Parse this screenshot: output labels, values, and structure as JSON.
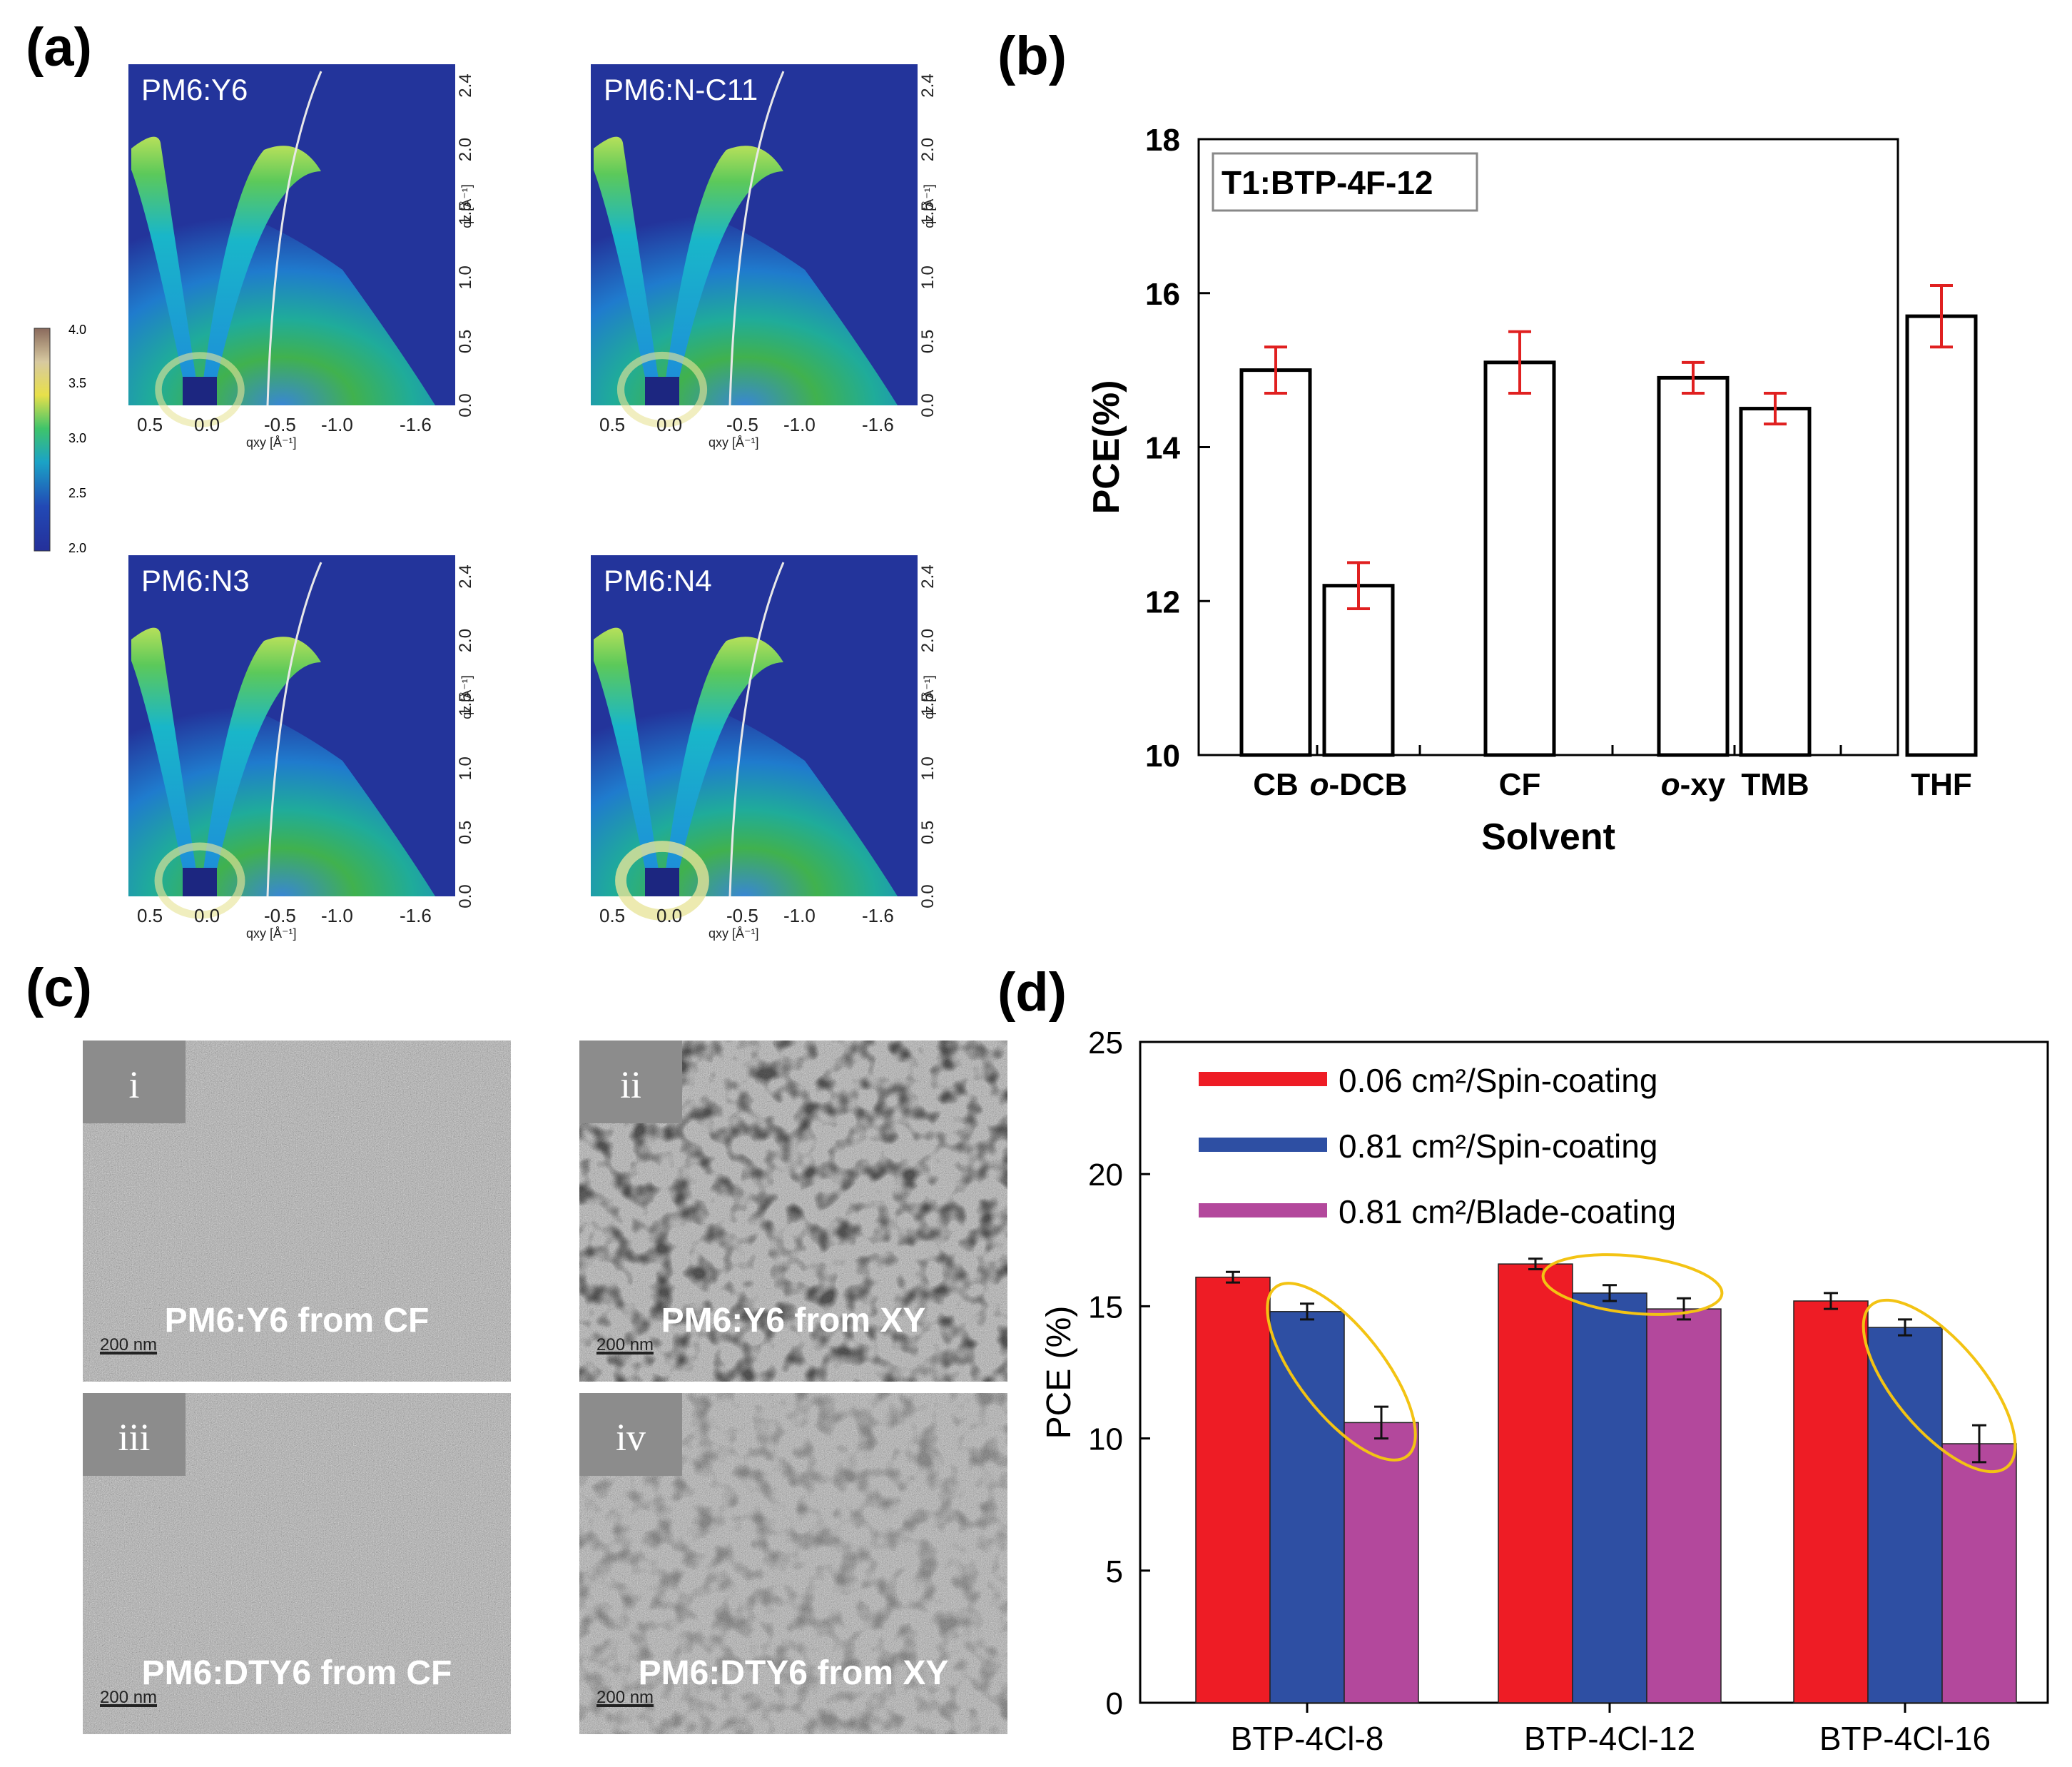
{
  "panel_labels": [
    "(a)",
    "(b)",
    "(c)",
    "(d)"
  ],
  "panel_a": {
    "colorbar": {
      "ticks": [
        "4.0",
        "3.5",
        "3.0",
        "2.5",
        "2.0"
      ]
    },
    "maps": [
      {
        "label": "PM6:Y6",
        "hot": 0.25
      },
      {
        "label": "PM6:N-C11",
        "hot": 0.3
      },
      {
        "label": "PM6:N3",
        "hot": 0.35
      },
      {
        "label": "PM6:N4",
        "hot": 0.7
      }
    ],
    "x_ticks": [
      "0.5",
      "0.0",
      "-0.5",
      "-1.0",
      "-1.6"
    ],
    "y_ticks": [
      "0.0",
      "0.5",
      "1.0",
      "1.5",
      "2.0",
      "2.4"
    ],
    "xlabel": "qxy [Å⁻¹]",
    "ylabel": "qz [Å⁻¹]"
  },
  "panel_c": {
    "images": [
      {
        "tag": "i",
        "caption": "PM6:Y6 from CF",
        "scale": "200 nm"
      },
      {
        "tag": "ii",
        "caption": "PM6:Y6 from XY",
        "scale": "200 nm"
      },
      {
        "tag": "iii",
        "caption": "PM6:DTY6 from CF",
        "scale": "200 nm"
      },
      {
        "tag": "iv",
        "caption": "PM6:DTY6 from XY",
        "scale": "200 nm"
      }
    ]
  },
  "chart_data": [
    {
      "type": "bar",
      "panel": "(b)",
      "legend_box": "T1:BTP-4F-12",
      "xlabel": "Solvent",
      "ylabel": "PCE(%)",
      "ylim": [
        10,
        18
      ],
      "yticks": [
        10,
        12,
        14,
        16,
        18
      ],
      "categories": [
        "CB",
        "o-DCB",
        "CF",
        "o-xy",
        "TMB",
        "THF"
      ],
      "values": [
        15.0,
        12.2,
        15.1,
        14.9,
        14.5,
        15.7
      ],
      "errors": [
        0.3,
        0.3,
        0.4,
        0.2,
        0.2,
        0.4
      ],
      "colors": {
        "bar_fill": "#ffffff",
        "bar_edge": "#000000",
        "error": "#e02020"
      }
    },
    {
      "type": "bar",
      "panel": "(d)",
      "xlabel": "",
      "ylabel": "PCE (%)",
      "ylim": [
        0,
        25
      ],
      "yticks": [
        0,
        5,
        10,
        15,
        20,
        25
      ],
      "categories": [
        "BTP-4Cl-8",
        "BTP-4Cl-12",
        "BTP-4Cl-16"
      ],
      "series": [
        {
          "name": "0.06 cm²/Spin-coating",
          "color": "#ee1c25",
          "values": [
            16.1,
            16.6,
            15.2
          ],
          "errors": [
            0.2,
            0.2,
            0.3
          ]
        },
        {
          "name": "0.81 cm²/Spin-coating",
          "color": "#2e4fa3",
          "values": [
            14.8,
            15.5,
            14.2
          ],
          "errors": [
            0.3,
            0.3,
            0.3
          ]
        },
        {
          "name": "0.81 cm²/Blade-coating",
          "color": "#b3489c",
          "values": [
            10.6,
            14.9,
            9.8
          ],
          "errors": [
            0.6,
            0.4,
            0.7
          ]
        }
      ],
      "highlight_color": "#f3c313"
    }
  ]
}
